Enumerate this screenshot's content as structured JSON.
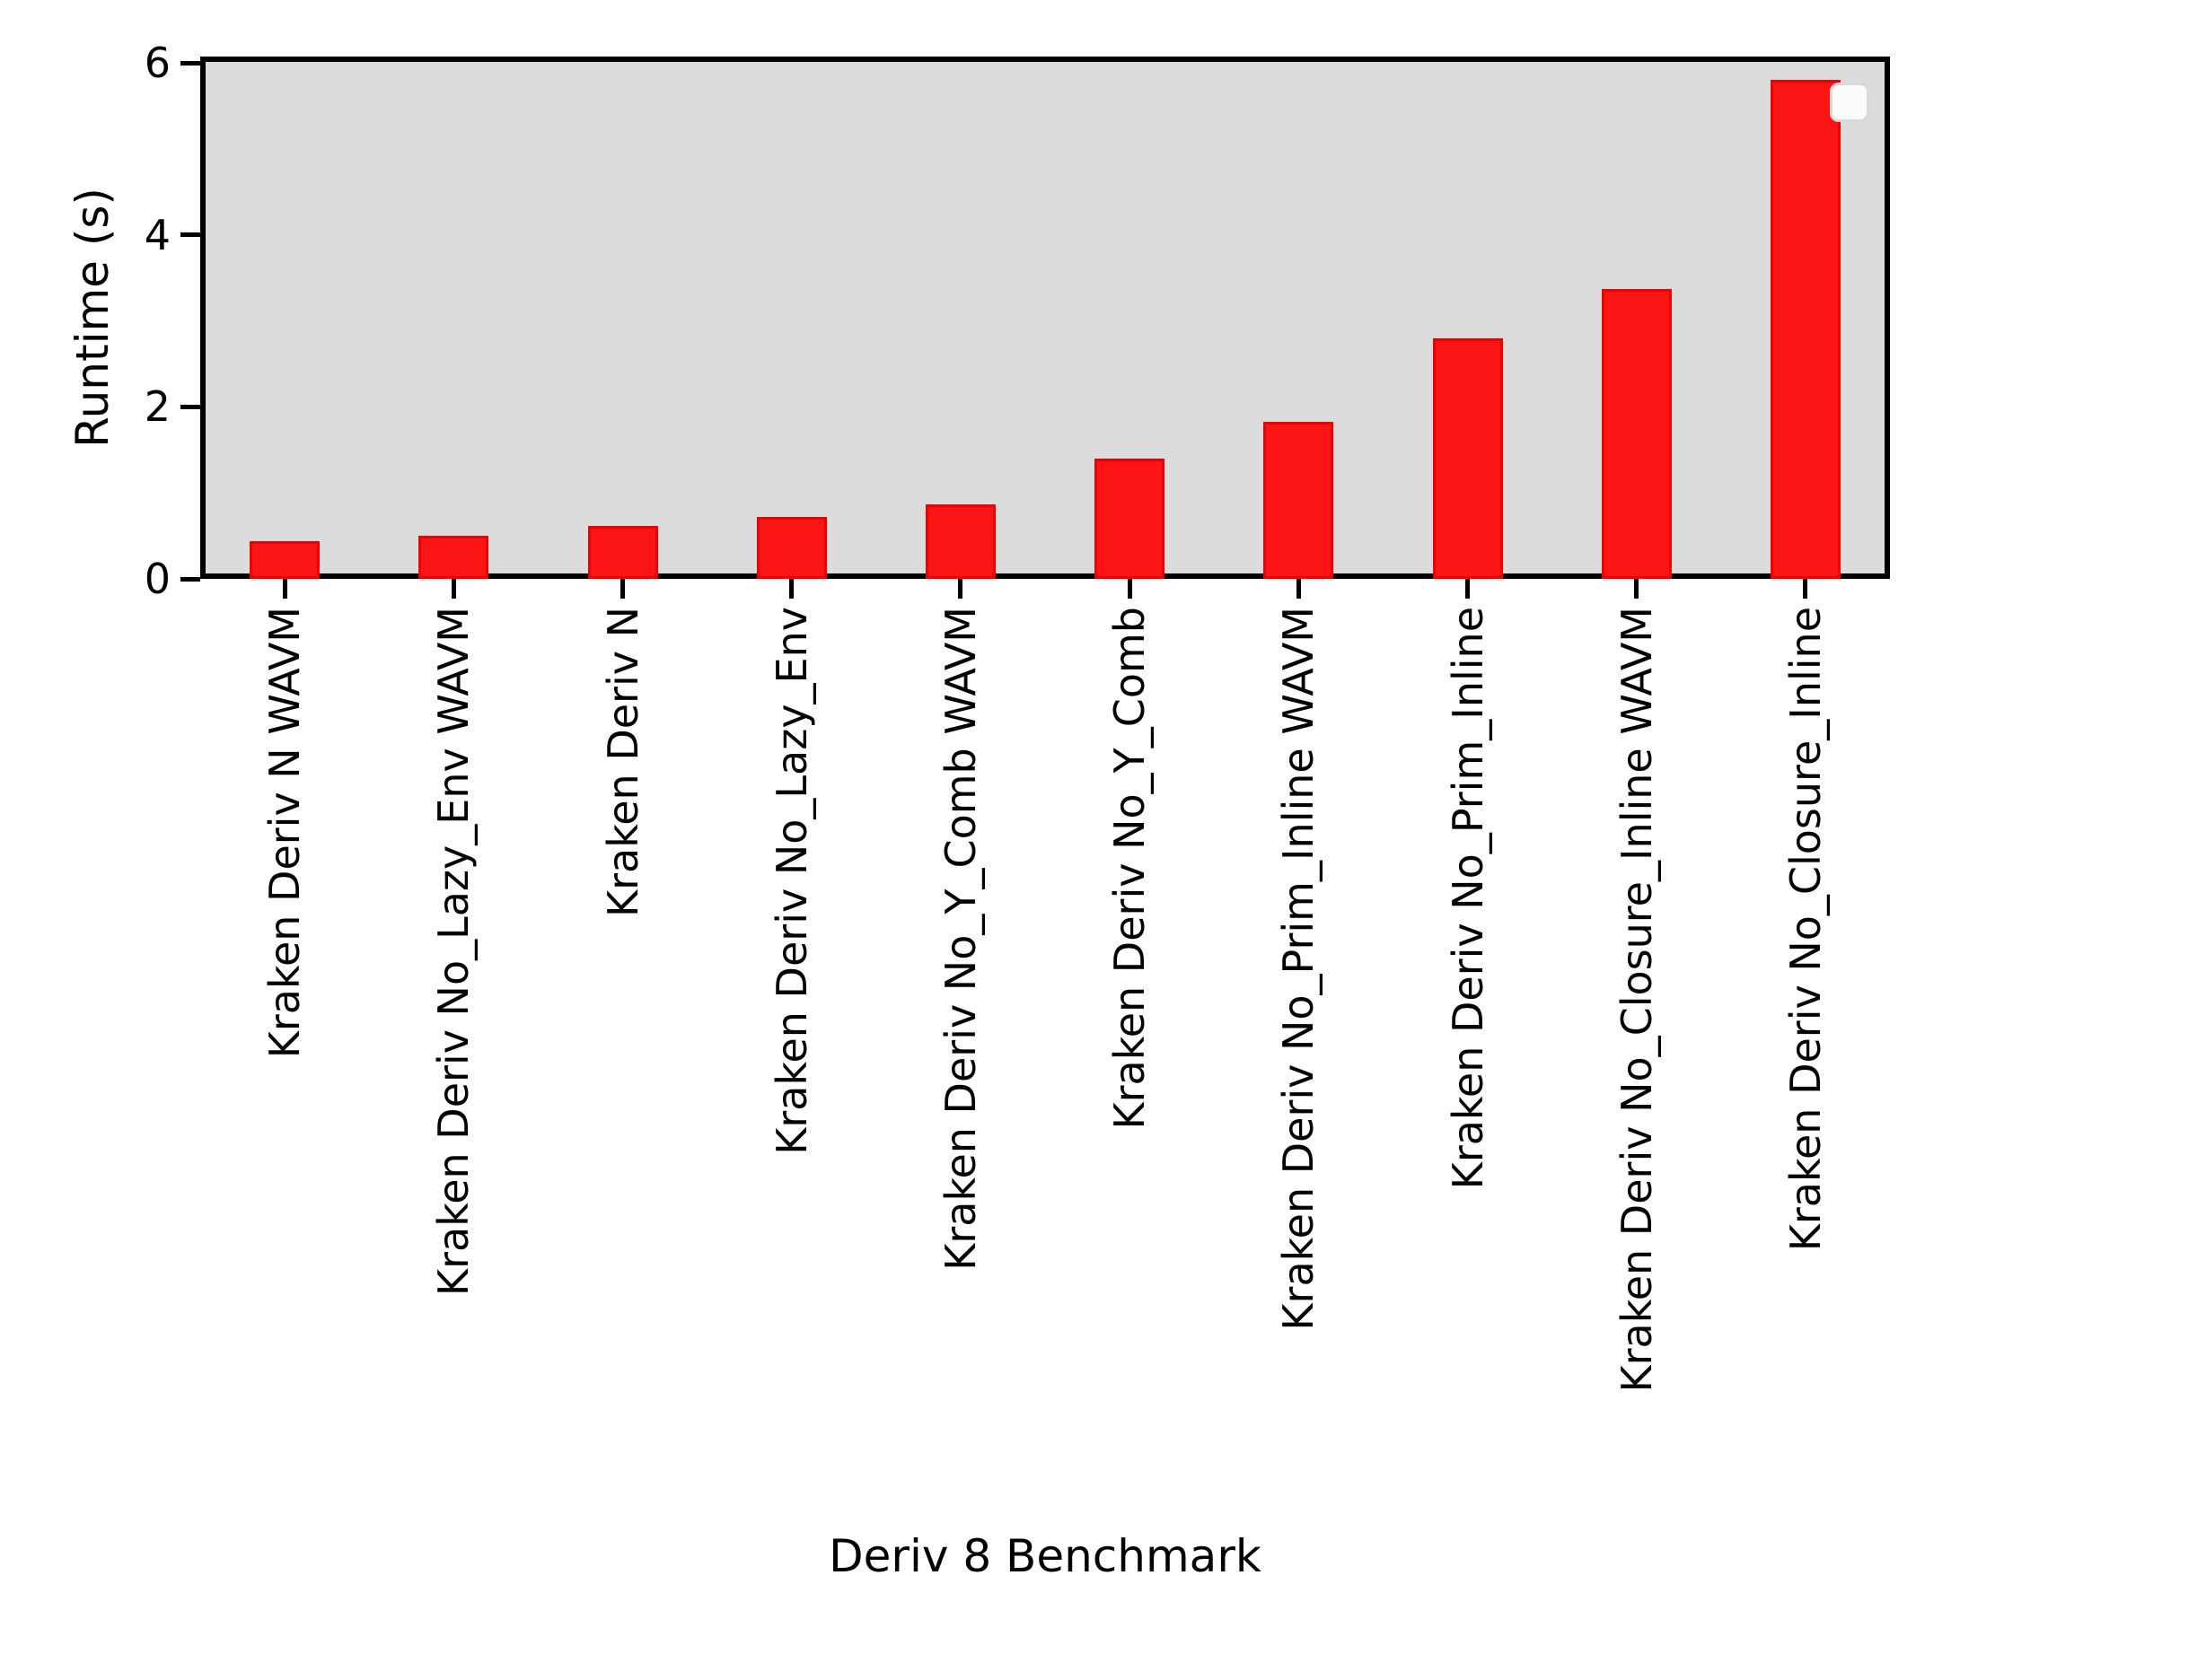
{
  "chart_data": {
    "type": "bar",
    "title": "",
    "xlabel": "Deriv 8 Benchmark",
    "ylabel": "Runtime (s)",
    "categories": [
      "Kraken Deriv N WAVM",
      "Kraken Deriv No_Lazy_Env WAVM",
      "Kraken Deriv N",
      "Kraken Deriv No_Lazy_Env",
      "Kraken Deriv No_Y_Comb WAVM",
      "Kraken Deriv No_Y_Comb",
      "Kraken Deriv No_Prim_Inline WAVM",
      "Kraken Deriv No_Prim_Inline",
      "Kraken Deriv No_Closure_Inline WAVM",
      "Kraken Deriv No_Closure_Inline"
    ],
    "values": [
      0.44,
      0.5,
      0.62,
      0.72,
      0.87,
      1.4,
      1.83,
      2.8,
      3.37,
      5.8
    ],
    "yticks": [
      0,
      2,
      4,
      6
    ],
    "ylim": [
      0,
      6
    ],
    "grid": false,
    "legend": {
      "present": true,
      "entries": [],
      "position": "upper right"
    },
    "colors": {
      "bar_fill": "#fa1414",
      "bar_edge": "#ef0000",
      "plot_background": "#dcdcdc",
      "figure_background": "#ffffff",
      "axis": "#000000",
      "text": "#000000"
    }
  }
}
